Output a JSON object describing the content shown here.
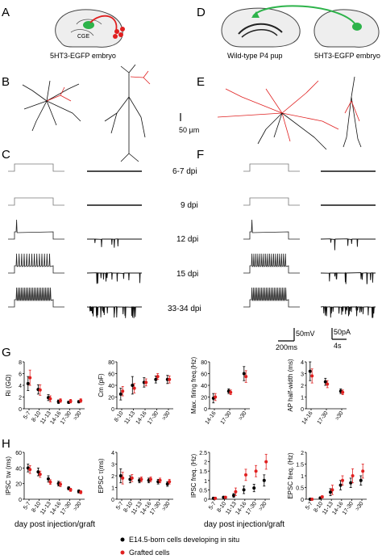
{
  "panels": {
    "A": "A",
    "B": "B",
    "C": "C",
    "D": "D",
    "E": "E",
    "F": "F",
    "G": "G",
    "H": "H"
  },
  "schematic": {
    "cge_label": "CGE",
    "a_caption": "5HT3-EGFP embryo",
    "d_caption_left": "Wild-type P4 pup",
    "d_caption_right": "5HT3-EGFP embryo"
  },
  "scalebars": {
    "morph": "50 µm",
    "voltage": "50mV",
    "time_v": "200ms",
    "current": "50pA",
    "time_i": "4s"
  },
  "dpi_labels": [
    "6-7 dpi",
    "9 dpi",
    "12 dpi",
    "15 dpi",
    "33-34 dpi"
  ],
  "x_axis_title": "day post injection/graft",
  "legend": {
    "black": "E14.5-born cells developing in situ",
    "red": "Grafted cells"
  },
  "colors": {
    "black": "#000000",
    "red": "#e02020",
    "green": "#2db34a",
    "gray": "#555555"
  },
  "chart_data": [
    {
      "type": "scatter",
      "ylabel": "Ri (GΩ)",
      "categories": [
        "5-7",
        "8-10",
        "11-13",
        "14-16",
        "17-30",
        ">30"
      ],
      "ylim": [
        0,
        8
      ],
      "yticks": [
        0,
        2,
        4,
        6,
        8
      ],
      "series": [
        {
          "name": "E14.5-born cells developing in situ",
          "values": [
            4.3,
            3.3,
            1.9,
            1.2,
            1.1,
            1.2
          ],
          "err": [
            1.2,
            0.8,
            0.5,
            0.3,
            0.2,
            0.2
          ]
        },
        {
          "name": "Grafted cells",
          "values": [
            5.3,
            3.2,
            1.7,
            1.4,
            1.3,
            1.4
          ],
          "err": [
            1.3,
            0.9,
            0.5,
            0.3,
            0.3,
            0.3
          ]
        }
      ]
    },
    {
      "type": "scatter",
      "ylabel": "Cm (pF)",
      "categories": [
        "8-10",
        "11-13",
        "14-16",
        "17-30",
        ">30"
      ],
      "ylim": [
        0,
        80
      ],
      "yticks": [
        0,
        20,
        40,
        60,
        80
      ],
      "series": [
        {
          "name": "E14.5-born cells developing in situ",
          "values": [
            25,
            40,
            45,
            50,
            50
          ],
          "err": [
            10,
            15,
            8,
            6,
            7
          ]
        },
        {
          "name": "Grafted cells",
          "values": [
            30,
            35,
            45,
            55,
            50
          ],
          "err": [
            8,
            8,
            6,
            5,
            6
          ]
        }
      ]
    },
    {
      "type": "scatter",
      "ylabel": "Max. firing freq.(Hz)",
      "categories": [
        "14-16",
        "17-30",
        ">30"
      ],
      "ylim": [
        0,
        80
      ],
      "yticks": [
        0,
        20,
        40,
        60,
        80
      ],
      "series": [
        {
          "name": "E14.5-born cells developing in situ",
          "values": [
            18,
            30,
            60
          ],
          "err": [
            8,
            4,
            12
          ]
        },
        {
          "name": "Grafted cells",
          "values": [
            20,
            28,
            55
          ],
          "err": [
            6,
            4,
            10
          ]
        }
      ]
    },
    {
      "type": "scatter",
      "ylabel": "AP half-width (ms)",
      "categories": [
        "14-16",
        "17-30",
        ">30"
      ],
      "ylim": [
        0,
        4
      ],
      "yticks": [
        0,
        1,
        2,
        3,
        4
      ],
      "series": [
        {
          "name": "E14.5-born cells developing in situ",
          "values": [
            3.2,
            2.3,
            1.5
          ],
          "err": [
            0.8,
            0.3,
            0.2
          ]
        },
        {
          "name": "Grafted cells",
          "values": [
            2.8,
            2.1,
            1.4
          ],
          "err": [
            0.6,
            0.3,
            0.2
          ]
        }
      ]
    },
    {
      "type": "scatter",
      "ylabel": "IPSC τw (ms)",
      "categories": [
        "5-7",
        "8-10",
        "11-13",
        "14-16",
        "17-30",
        ">30"
      ],
      "ylim": [
        0,
        60
      ],
      "yticks": [
        0,
        20,
        40,
        60
      ],
      "series": [
        {
          "name": "E14.5-born cells developing in situ",
          "values": [
            40,
            35,
            26,
            20,
            14,
            10
          ],
          "err": [
            5,
            5,
            4,
            3,
            2,
            2
          ]
        },
        {
          "name": "Grafted cells",
          "values": [
            38,
            32,
            22,
            19,
            12,
            9
          ],
          "err": [
            5,
            4,
            3,
            3,
            2,
            2
          ]
        }
      ]
    },
    {
      "type": "scatter",
      "ylabel": "EPSC τ(ms)",
      "categories": [
        "5-7",
        "8-10",
        "11-13",
        "14-16",
        "17-30",
        ">30"
      ],
      "ylim": [
        0,
        4
      ],
      "yticks": [
        0,
        1,
        2,
        3,
        4
      ],
      "series": [
        {
          "name": "E14.5-born cells developing in situ",
          "values": [
            2.0,
            1.7,
            1.6,
            1.6,
            1.5,
            1.3
          ],
          "err": [
            0.6,
            0.3,
            0.2,
            0.2,
            0.2,
            0.2
          ]
        },
        {
          "name": "Grafted cells",
          "values": [
            1.8,
            1.8,
            1.7,
            1.7,
            1.6,
            1.5
          ],
          "err": [
            0.5,
            0.3,
            0.2,
            0.2,
            0.2,
            0.2
          ]
        }
      ]
    },
    {
      "type": "scatter",
      "ylabel": "IPSC freq. (Hz)",
      "categories": [
        "5-7",
        "8-10",
        "11-13",
        "14-16",
        "17-30",
        ">30"
      ],
      "ylim": [
        0,
        2.5
      ],
      "yticks": [
        0,
        0.5,
        1,
        1.5,
        2,
        2.5
      ],
      "series": [
        {
          "name": "E14.5-born cells developing in situ",
          "values": [
            0.05,
            0.1,
            0.2,
            0.5,
            0.6,
            1.0
          ],
          "err": [
            0.03,
            0.05,
            0.1,
            0.2,
            0.2,
            0.3
          ]
        },
        {
          "name": "Grafted cells",
          "values": [
            0.05,
            0.1,
            0.4,
            1.3,
            1.5,
            2.0
          ],
          "err": [
            0.03,
            0.05,
            0.2,
            0.3,
            0.3,
            0.4
          ]
        }
      ]
    },
    {
      "type": "scatter",
      "ylabel": "EPSC freq. (Hz)",
      "categories": [
        "5-7",
        "8-10",
        "11-13",
        "14-16",
        "17-30",
        ">30"
      ],
      "ylim": [
        0,
        2
      ],
      "yticks": [
        0,
        0.5,
        1,
        1.5,
        2
      ],
      "series": [
        {
          "name": "E14.5-born cells developing in situ",
          "values": [
            0.0,
            0.05,
            0.3,
            0.6,
            0.7,
            0.8
          ],
          "err": [
            0.02,
            0.05,
            0.15,
            0.2,
            0.2,
            0.2
          ]
        },
        {
          "name": "Grafted cells",
          "values": [
            0.0,
            0.1,
            0.4,
            0.8,
            1.0,
            1.2
          ],
          "err": [
            0.02,
            0.05,
            0.2,
            0.2,
            0.3,
            0.3
          ]
        }
      ]
    }
  ]
}
